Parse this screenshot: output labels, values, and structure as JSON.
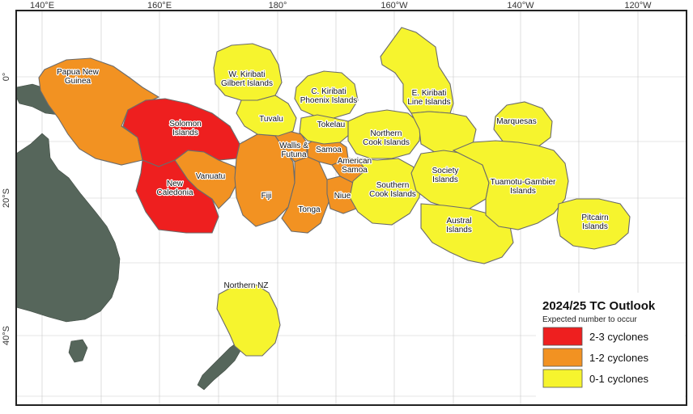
{
  "map": {
    "axes": {
      "top_lon_labels": [
        "140°E",
        "160°E",
        "180°",
        "160°W",
        "140°W",
        "120°W"
      ],
      "left_lat_labels": [
        "0°",
        "20°S",
        "40°S"
      ]
    },
    "colors": {
      "high": "#ee1f1f",
      "medium": "#f29222",
      "low": "#f6f42e",
      "land": "#56665b",
      "ocean": "#ffffff"
    },
    "regions": [
      {
        "id": "png",
        "label_lines": [
          "Papua New",
          "Guinea"
        ],
        "category": "medium"
      },
      {
        "id": "solomon",
        "label_lines": [
          "Solomon",
          "Islands"
        ],
        "category": "high"
      },
      {
        "id": "vanuatu",
        "label_lines": [
          "Vanuatu"
        ],
        "category": "medium"
      },
      {
        "id": "newcal",
        "label_lines": [
          "New",
          "Caledonia"
        ],
        "category": "high"
      },
      {
        "id": "fiji",
        "label_lines": [
          "Fiji"
        ],
        "category": "medium"
      },
      {
        "id": "wallis",
        "label_lines": [
          "Wallis &",
          "Futuna"
        ],
        "category": "medium"
      },
      {
        "id": "samoa",
        "label_lines": [
          "Samoa"
        ],
        "category": "medium"
      },
      {
        "id": "amsamoa",
        "label_lines": [
          "American",
          "Samoa"
        ],
        "category": "medium"
      },
      {
        "id": "tonga",
        "label_lines": [
          "Tonga"
        ],
        "category": "medium"
      },
      {
        "id": "niue",
        "label_lines": [
          "Niue"
        ],
        "category": "medium"
      },
      {
        "id": "wkiribati",
        "label_lines": [
          "W. Kiribati",
          "Gilbert Islands"
        ],
        "category": "low"
      },
      {
        "id": "tuvalu",
        "label_lines": [
          "Tuvalu"
        ],
        "category": "low"
      },
      {
        "id": "ckiribati",
        "label_lines": [
          "C. Kiribati",
          "Phoenix Islands"
        ],
        "category": "low"
      },
      {
        "id": "tokelau",
        "label_lines": [
          "Tokelau"
        ],
        "category": "low"
      },
      {
        "id": "ncook",
        "label_lines": [
          "Northern",
          "Cook Islands"
        ],
        "category": "low"
      },
      {
        "id": "scook",
        "label_lines": [
          "Southern",
          "Cook Islands"
        ],
        "category": "low"
      },
      {
        "id": "ekiribati",
        "label_lines": [
          "E. Kiribati",
          "Line Islands"
        ],
        "category": "low"
      },
      {
        "id": "society",
        "label_lines": [
          "Society",
          "Islands"
        ],
        "category": "low"
      },
      {
        "id": "austral",
        "label_lines": [
          "Austral",
          "Islands"
        ],
        "category": "low"
      },
      {
        "id": "marquesas",
        "label_lines": [
          "Marquesas"
        ],
        "category": "low"
      },
      {
        "id": "tuamotu",
        "label_lines": [
          "Tuamotu-Gambier",
          "Islands"
        ],
        "category": "low"
      },
      {
        "id": "pitcairn",
        "label_lines": [
          "Pitcairn",
          "Islands"
        ],
        "category": "low"
      },
      {
        "id": "nnz",
        "label_lines": [
          "Northern NZ"
        ],
        "category": "low"
      }
    ],
    "legend": {
      "title": "2024/25 TC Outlook",
      "subtitle": "Expected number to occur",
      "items": [
        {
          "label": "2-3 cyclones",
          "category": "high"
        },
        {
          "label": "1-2 cyclones",
          "category": "medium"
        },
        {
          "label": "0-1 cyclones",
          "category": "low"
        }
      ]
    }
  }
}
